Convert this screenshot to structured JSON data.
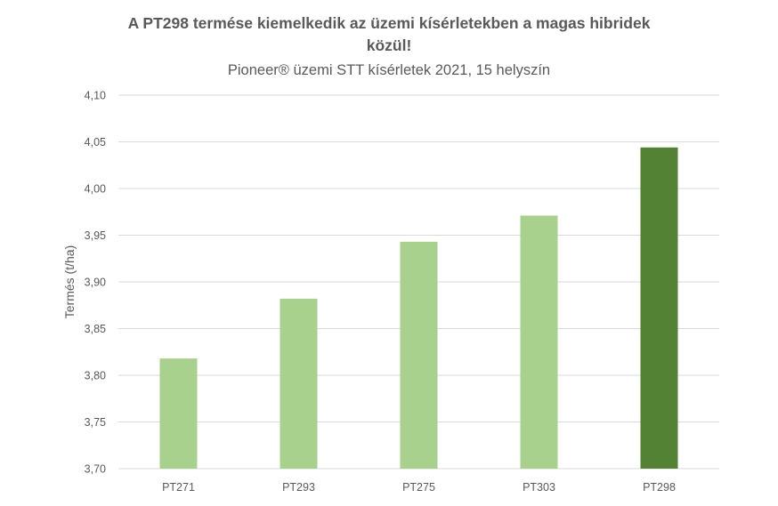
{
  "chart_data": {
    "type": "bar",
    "title": "A PT298 termése kiemelkedik az üzemi kísérletekben a magas hibridek közül!",
    "subtitle": "Pioneer® üzemi STT kísérletek 2021, 15 helyszín",
    "xlabel": "",
    "ylabel": "Termés (t/ha)",
    "categories": [
      "PT271",
      "PT293",
      "PT275",
      "PT303",
      "PT298"
    ],
    "values": [
      3.818,
      3.882,
      3.943,
      3.971,
      4.044
    ],
    "ylim": [
      3.7,
      4.1
    ],
    "yticks": [
      "3,70",
      "3,75",
      "3,80",
      "3,85",
      "3,90",
      "3,95",
      "4,00",
      "4,05",
      "4,10"
    ],
    "grid": true,
    "colors": [
      "#a9d18e",
      "#a9d18e",
      "#a9d18e",
      "#a9d18e",
      "#548235"
    ],
    "gridline_color": "#d9d9d9",
    "axis_color": "#d9d9d9"
  }
}
